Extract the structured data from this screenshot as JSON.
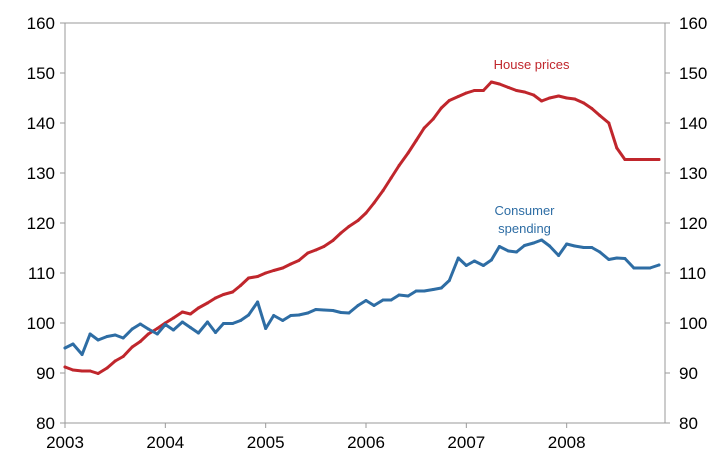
{
  "chart_data": {
    "type": "line",
    "title": "",
    "xlabel": "",
    "ylabel": "",
    "ylim": [
      80,
      160
    ],
    "yticks": [
      80,
      90,
      100,
      110,
      120,
      130,
      140,
      150,
      160
    ],
    "ytick_labels": [
      "80",
      "90",
      "100",
      "110",
      "120",
      "130",
      "140",
      "150",
      "160"
    ],
    "xlim": [
      2003,
      2008.98
    ],
    "xticks": [
      2003,
      2004,
      2005,
      2006,
      2007,
      2008
    ],
    "xtick_labels": [
      "2003",
      "2004",
      "2005",
      "2006",
      "2007",
      "2008"
    ],
    "dual_y_axis": true,
    "grid": false,
    "series": [
      {
        "name": "House prices",
        "color": "#c0262c",
        "x": [
          2003.0,
          2003.08,
          2003.17,
          2003.25,
          2003.33,
          2003.42,
          2003.5,
          2003.58,
          2003.67,
          2003.75,
          2003.83,
          2003.92,
          2004.0,
          2004.08,
          2004.17,
          2004.25,
          2004.33,
          2004.42,
          2004.5,
          2004.58,
          2004.67,
          2004.75,
          2004.83,
          2004.92,
          2005.0,
          2005.08,
          2005.17,
          2005.25,
          2005.33,
          2005.42,
          2005.5,
          2005.58,
          2005.67,
          2005.75,
          2005.83,
          2005.92,
          2006.0,
          2006.08,
          2006.17,
          2006.25,
          2006.33,
          2006.42,
          2006.5,
          2006.58,
          2006.67,
          2006.75,
          2006.83,
          2006.92,
          2007.0,
          2007.08,
          2007.17,
          2007.25,
          2007.33,
          2007.42,
          2007.5,
          2007.58,
          2007.67,
          2007.75,
          2007.83,
          2007.92,
          2008.0,
          2008.08,
          2008.17,
          2008.25,
          2008.33,
          2008.42,
          2008.5,
          2008.58,
          2008.67,
          2008.75,
          2008.83,
          2008.92
        ],
        "values": [
          91.2,
          90.6,
          90.4,
          90.4,
          89.9,
          91.0,
          92.4,
          93.3,
          95.2,
          96.3,
          97.8,
          98.9,
          100.0,
          101.0,
          102.2,
          101.8,
          103.0,
          104.0,
          105.0,
          105.7,
          106.2,
          107.5,
          109.0,
          109.3,
          110.0,
          110.5,
          111.0,
          111.8,
          112.5,
          114.0,
          114.6,
          115.3,
          116.5,
          118.0,
          119.3,
          120.5,
          122.0,
          124.0,
          126.5,
          129.0,
          131.5,
          134.0,
          136.5,
          139.0,
          140.8,
          143.0,
          144.5,
          145.3,
          146.0,
          146.5,
          146.5,
          148.2,
          147.8,
          147.1,
          146.5,
          146.2,
          145.6,
          144.4,
          145.0,
          145.4,
          145.0,
          144.8,
          144.0,
          142.9,
          141.5,
          140.0,
          135.0,
          132.7,
          132.7,
          132.7,
          132.7,
          132.7
        ]
      },
      {
        "name": "Consumer spending",
        "label_lines": [
          "Consumer",
          "spending"
        ],
        "color": "#2e6da4",
        "x": [
          2003.0,
          2003.08,
          2003.17,
          2003.25,
          2003.33,
          2003.42,
          2003.5,
          2003.58,
          2003.67,
          2003.75,
          2003.83,
          2003.92,
          2004.0,
          2004.08,
          2004.17,
          2004.25,
          2004.33,
          2004.42,
          2004.5,
          2004.58,
          2004.67,
          2004.75,
          2004.83,
          2004.92,
          2005.0,
          2005.08,
          2005.17,
          2005.25,
          2005.33,
          2005.42,
          2005.5,
          2005.58,
          2005.67,
          2005.75,
          2005.83,
          2005.92,
          2006.0,
          2006.08,
          2006.17,
          2006.25,
          2006.33,
          2006.42,
          2006.5,
          2006.58,
          2006.67,
          2006.75,
          2006.83,
          2006.92,
          2007.0,
          2007.08,
          2007.17,
          2007.25,
          2007.33,
          2007.42,
          2007.5,
          2007.58,
          2007.67,
          2007.75,
          2007.83,
          2007.92,
          2008.0,
          2008.08,
          2008.17,
          2008.25,
          2008.33,
          2008.42,
          2008.5,
          2008.58,
          2008.67,
          2008.75,
          2008.83,
          2008.92
        ],
        "values": [
          95.0,
          95.8,
          93.7,
          97.8,
          96.6,
          97.3,
          97.6,
          97.0,
          98.8,
          99.8,
          98.8,
          97.8,
          99.7,
          98.6,
          100.2,
          99.1,
          98.0,
          100.2,
          98.1,
          99.9,
          99.9,
          100.5,
          101.6,
          104.2,
          98.9,
          101.5,
          100.5,
          101.5,
          101.6,
          102.0,
          102.7,
          102.6,
          102.5,
          102.1,
          102.0,
          103.5,
          104.5,
          103.5,
          104.6,
          104.6,
          105.6,
          105.4,
          106.4,
          106.4,
          106.7,
          107.0,
          108.5,
          113.0,
          111.5,
          112.4,
          111.5,
          112.6,
          115.3,
          114.4,
          114.2,
          115.5,
          116.0,
          116.6,
          115.4,
          113.5,
          115.8,
          115.4,
          115.1,
          115.1,
          114.2,
          112.7,
          113.0,
          112.9,
          111.0,
          111.0,
          111.0,
          111.6
        ]
      }
    ]
  }
}
